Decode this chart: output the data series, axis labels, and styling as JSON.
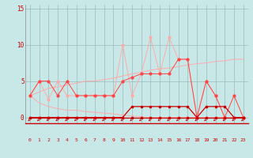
{
  "x": [
    0,
    1,
    2,
    3,
    4,
    5,
    6,
    7,
    8,
    9,
    10,
    11,
    12,
    13,
    14,
    15,
    16,
    17,
    18,
    19,
    20,
    21,
    22,
    23
  ],
  "line_light_spiky": [
    3,
    5,
    2.5,
    5,
    3,
    3,
    3,
    3,
    3,
    3,
    10,
    3,
    6,
    11,
    6,
    11,
    8,
    8,
    0,
    5,
    3,
    0,
    0,
    0
  ],
  "line_med_lower": [
    3,
    5,
    5,
    3,
    5,
    3,
    3,
    3,
    3,
    3,
    5,
    5.5,
    6,
    6,
    6,
    6,
    8,
    8,
    0,
    5,
    3,
    0,
    3,
    0
  ],
  "line_light_upper": [
    3,
    3.5,
    4,
    4.2,
    4.5,
    4.7,
    5,
    5,
    5.2,
    5.4,
    5.7,
    6,
    6.2,
    6.5,
    6.7,
    6.8,
    7,
    7.2,
    7.4,
    7.5,
    7.7,
    7.8,
    8,
    8
  ],
  "line_light_lower": [
    3,
    2,
    1.5,
    1.2,
    1,
    1,
    0.8,
    0.7,
    0.6,
    0.5,
    0.3,
    0.2,
    0.1,
    0,
    0,
    0,
    0,
    0,
    0,
    0,
    0,
    0,
    0,
    0
  ],
  "line_dark_zero": [
    0,
    0,
    0,
    0,
    0,
    0,
    0,
    0,
    0,
    0,
    0,
    0,
    0,
    0,
    0,
    0,
    0,
    0,
    0,
    0,
    0,
    0,
    0,
    0
  ],
  "line_dark_bump": [
    0,
    0,
    0,
    0,
    0,
    0,
    0,
    0,
    0,
    0,
    0,
    1.5,
    1.5,
    1.5,
    1.5,
    1.5,
    1.5,
    1.5,
    0,
    1.5,
    1.5,
    1.5,
    0,
    0
  ],
  "bg_color": "#c8e8e8",
  "grid_color": "#99bbbb",
  "color_dark": "#cc0000",
  "color_med": "#ff4444",
  "color_light": "#ffaaaa",
  "yticks": [
    0,
    5,
    10,
    15
  ],
  "xticks": [
    0,
    1,
    2,
    3,
    4,
    5,
    6,
    7,
    8,
    9,
    10,
    11,
    12,
    13,
    14,
    15,
    16,
    17,
    18,
    19,
    20,
    21,
    22,
    23
  ],
  "figsize": [
    3.2,
    2.0
  ],
  "dpi": 100
}
